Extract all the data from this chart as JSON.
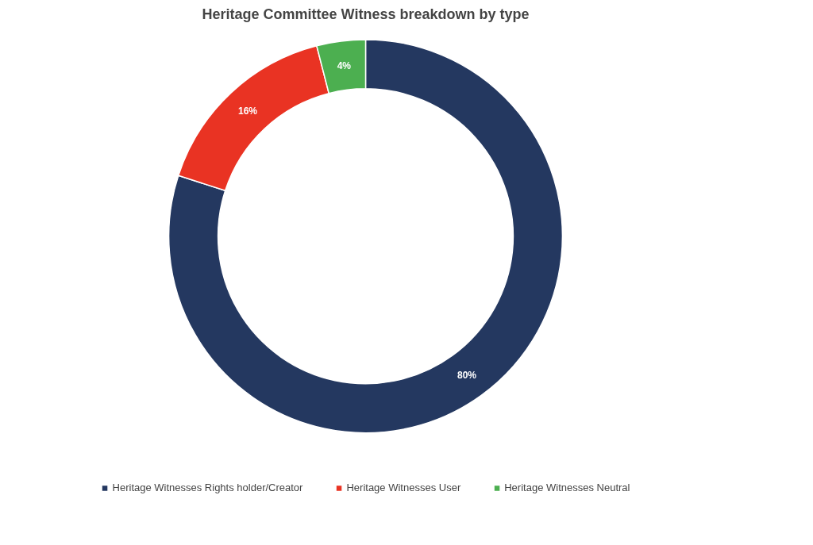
{
  "chart_data": {
    "type": "donut",
    "title": "Heritage Committee Witness breakdown by type",
    "categories": [
      "Heritage Witnesses Rights holder/Creator",
      "Heritage Witnesses User",
      "Heritage Witnesses Neutral"
    ],
    "values": [
      80,
      16,
      4
    ],
    "colors": [
      "#243860",
      "#e93323",
      "#4caf50"
    ],
    "value_labels": [
      "80%",
      "16%",
      "4%"
    ],
    "legend": "bottom"
  }
}
